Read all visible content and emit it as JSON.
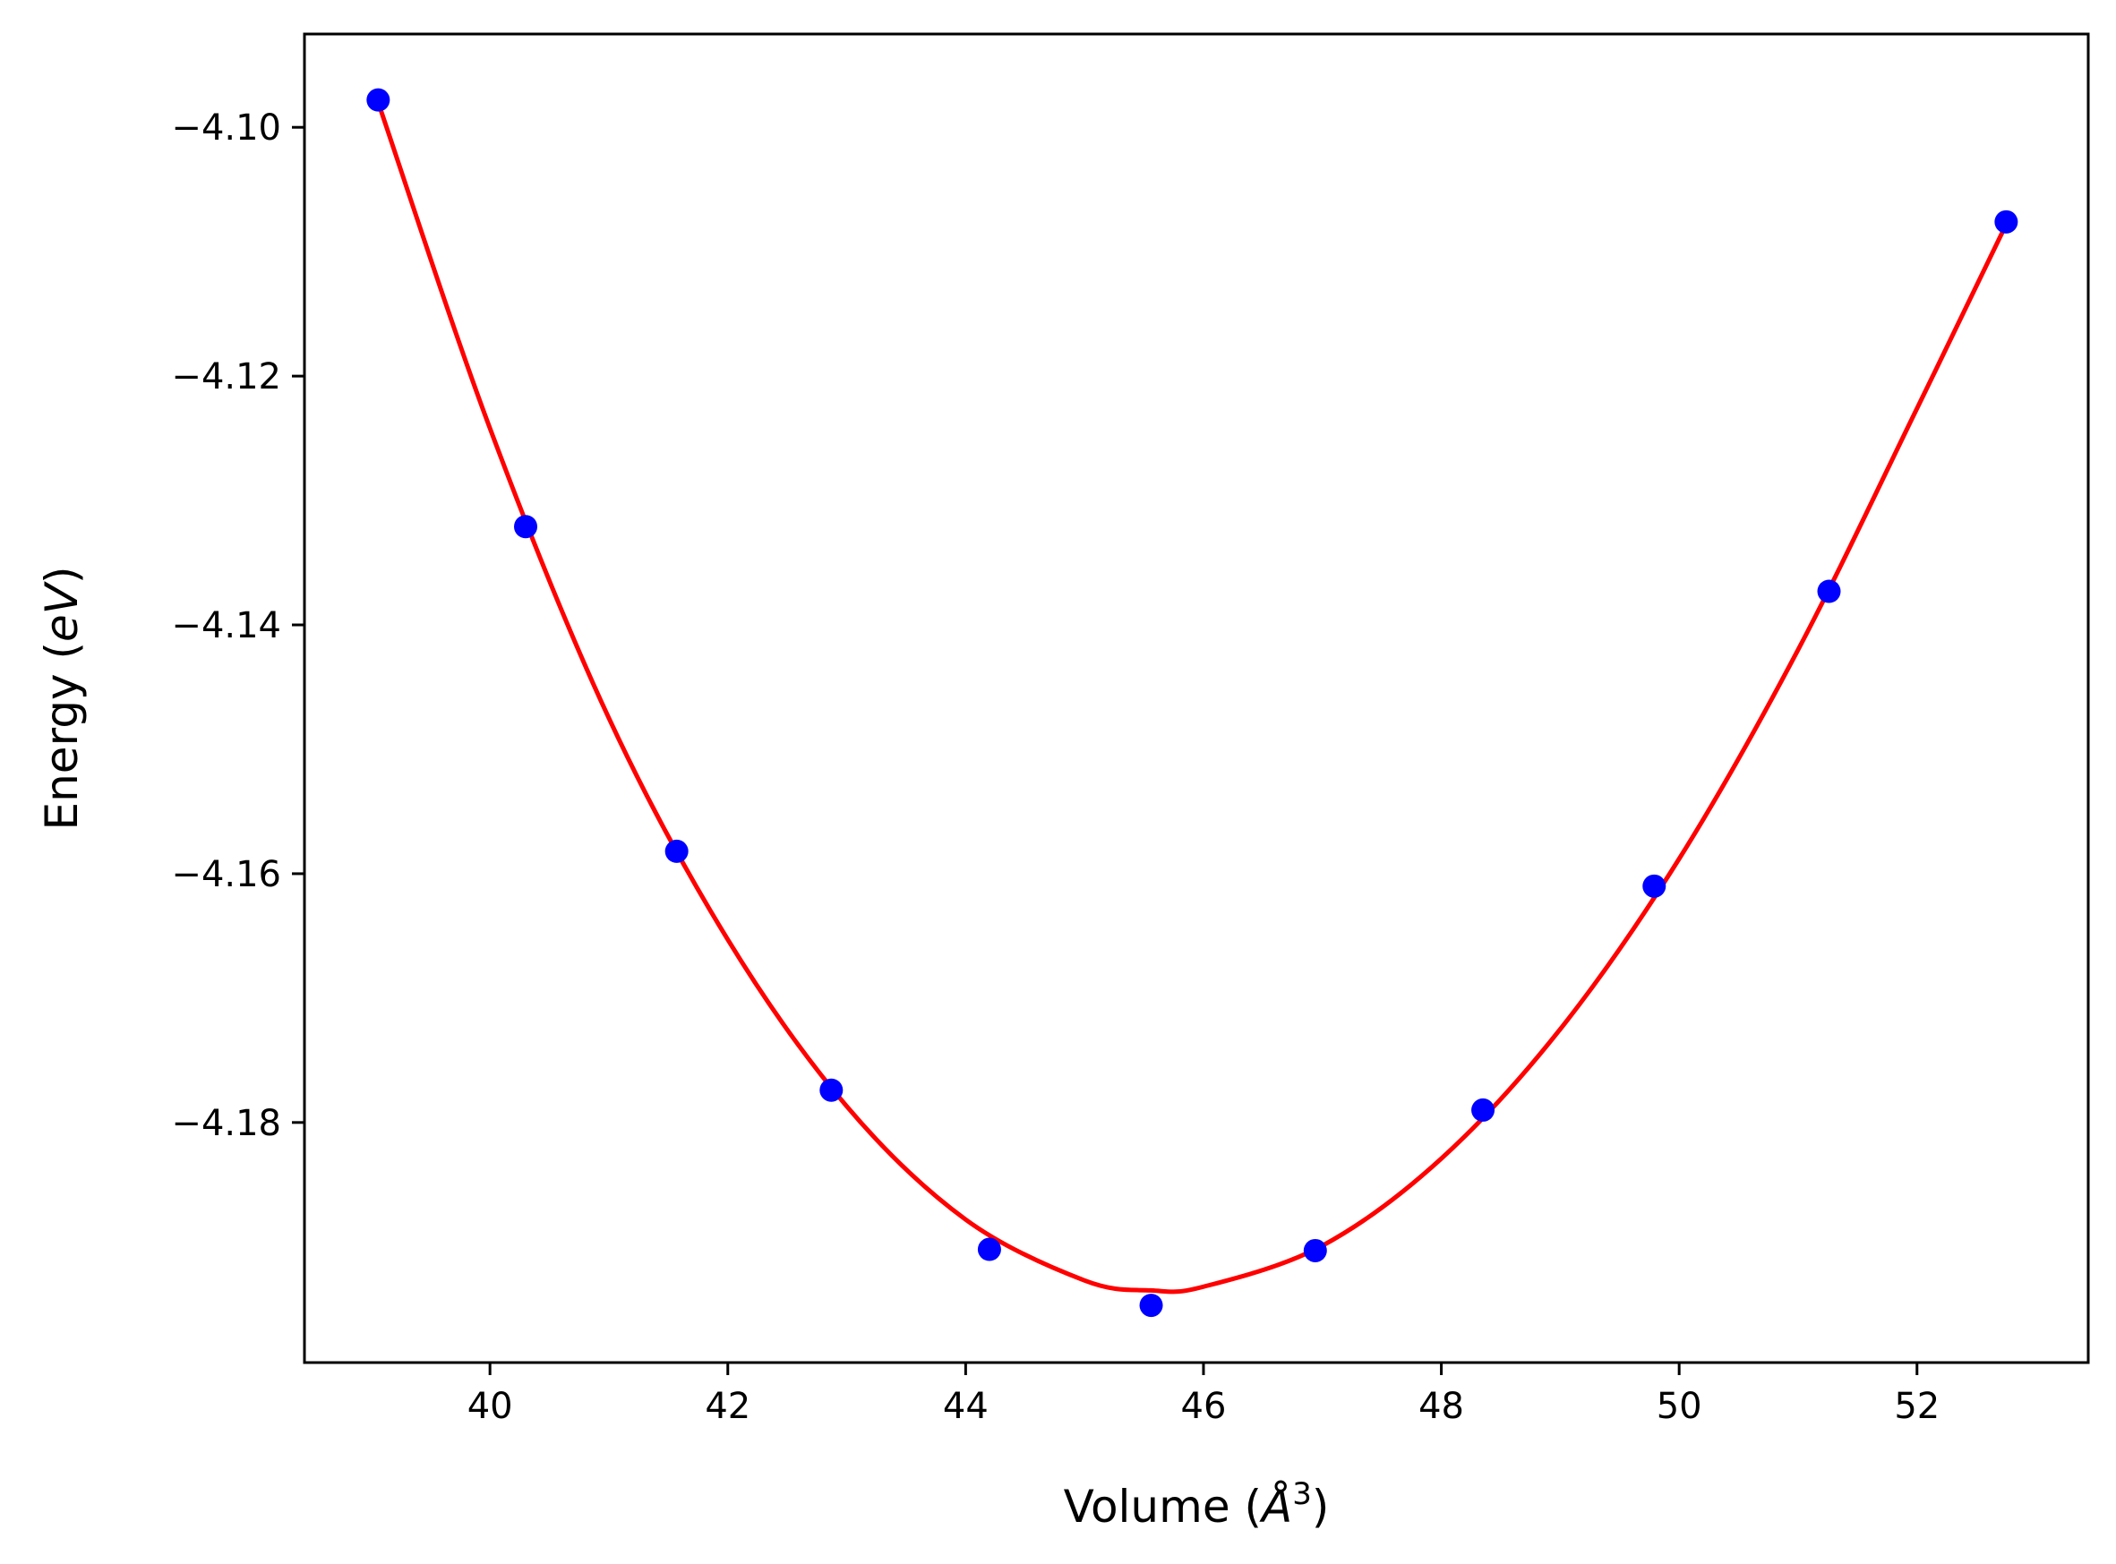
{
  "chart_data": {
    "type": "scatter",
    "xlabel": "Volume (Å³)",
    "xlabel_parts": {
      "prefix": "Volume (",
      "symbol": "Å",
      "power": "3",
      "suffix": ")"
    },
    "ylabel": "Energy (eV)",
    "ylabel_parts": {
      "prefix": "Energy (",
      "unit": "eV",
      "suffix": ")"
    },
    "xlim": [
      38.44,
      53.44
    ],
    "ylim": [
      -4.1993,
      -4.0925
    ],
    "x_ticks": [
      {
        "value": 40,
        "label": "40"
      },
      {
        "value": 42,
        "label": "42"
      },
      {
        "value": 44,
        "label": "44"
      },
      {
        "value": 46,
        "label": "46"
      },
      {
        "value": 48,
        "label": "48"
      },
      {
        "value": 50,
        "label": "50"
      },
      {
        "value": 52,
        "label": "52"
      }
    ],
    "y_ticks": [
      {
        "value": -4.1,
        "label": "−4.10"
      },
      {
        "value": -4.12,
        "label": "−4.12"
      },
      {
        "value": -4.14,
        "label": "−4.14"
      },
      {
        "value": -4.16,
        "label": "−4.16"
      },
      {
        "value": -4.18,
        "label": "−4.18"
      }
    ],
    "grid": false,
    "legend": "none",
    "series": [
      {
        "kind": "scatter",
        "color": "#0000ff",
        "x": [
          39.06,
          40.3,
          41.57,
          42.87,
          44.2,
          45.56,
          46.94,
          48.35,
          49.79,
          51.26,
          52.75
        ],
        "y": [
          -4.0978,
          -4.1321,
          -4.1582,
          -4.1774,
          -4.1902,
          -4.1947,
          -4.1903,
          -4.179,
          -4.161,
          -4.1373,
          -4.1076
        ]
      },
      {
        "kind": "fit-line",
        "color": "#ff0000",
        "x": [
          39.06,
          40.0,
          41.0,
          42.0,
          43.0,
          44.0,
          45.0,
          45.56,
          46.0,
          47.0,
          48.0,
          49.0,
          50.0,
          51.0,
          52.0,
          52.75
        ],
        "y": [
          -4.098,
          -4.1242,
          -4.1475,
          -4.1653,
          -4.1787,
          -4.1878,
          -4.1927,
          -4.1935,
          -4.1932,
          -4.1899,
          -4.1829,
          -4.1725,
          -4.1588,
          -4.142,
          -4.1226,
          -4.1078
        ]
      }
    ]
  }
}
